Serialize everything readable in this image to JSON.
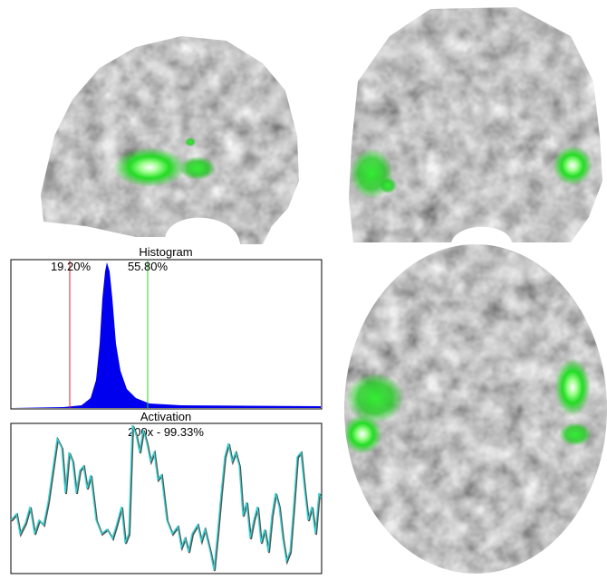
{
  "histogram": {
    "title": "Histogram",
    "lower_threshold": "19.20%",
    "upper_threshold": "55.80%"
  },
  "activation": {
    "title": "Activation",
    "subtitle": "200x - 99.33%"
  }
}
